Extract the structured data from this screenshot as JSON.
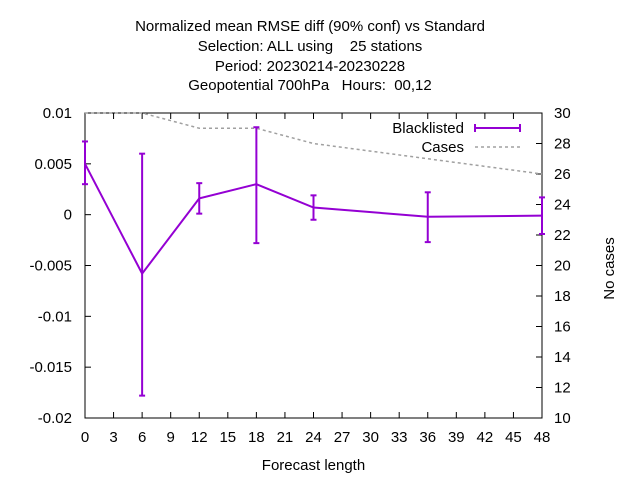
{
  "chart_data": {
    "type": "line",
    "title_lines": [
      "Normalized mean RMSE diff (90% conf) vs Standard",
      "Selection: ALL using    25 stations",
      "Period: 20230214-20230228",
      "Geopotential 700hPa   Hours:  00,12"
    ],
    "xlabel": "Forecast length",
    "ylabel": "",
    "y2label": "No cases",
    "xlim": [
      0,
      48
    ],
    "ylim": [
      -0.02,
      0.01
    ],
    "y2lim": [
      10,
      30
    ],
    "x_ticks": [
      "0",
      "3",
      "6",
      "9",
      "12",
      "15",
      "18",
      "21",
      "24",
      "27",
      "30",
      "33",
      "36",
      "39",
      "42",
      "45",
      "48"
    ],
    "y_ticks": [
      "0.01",
      "0.005",
      "0",
      "-0.005",
      "-0.01",
      "-0.015",
      "-0.02"
    ],
    "y2_ticks": [
      "30",
      "28",
      "26",
      "24",
      "22",
      "20",
      "18",
      "16",
      "14",
      "12",
      "10"
    ],
    "legend_position": "top-right",
    "series": [
      {
        "name": "Blacklisted",
        "color": "#9400d3",
        "style": "errorbars-line",
        "x": [
          0,
          6,
          12,
          18,
          24,
          36,
          48
        ],
        "y": [
          0.005,
          -0.0058,
          0.0016,
          0.003,
          0.0007,
          -0.0002,
          -0.0001
        ],
        "err_low": [
          0.003,
          -0.0178,
          0.0001,
          -0.0028,
          -0.0005,
          -0.0027,
          -0.0019
        ],
        "err_high": [
          0.0072,
          0.006,
          0.0031,
          0.0086,
          0.0019,
          0.0022,
          0.0017
        ]
      },
      {
        "name": "Cases",
        "color": "#a0a0a0",
        "style": "dashed",
        "axis": "y2",
        "x": [
          0,
          6,
          12,
          18,
          24,
          36,
          48
        ],
        "y": [
          30,
          30,
          29,
          29,
          28,
          27,
          26
        ]
      }
    ]
  }
}
